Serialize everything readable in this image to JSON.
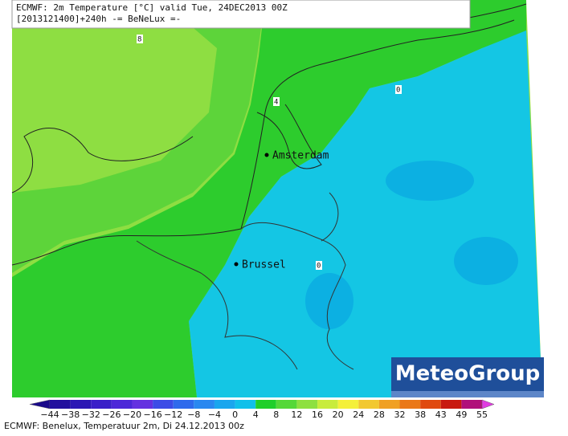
{
  "header": {
    "line1": "ECMWF: 2m Temperature [°C] valid Tue, 24DEC2013 00Z",
    "line2": "[2013121400]+240h -= BeNeLux =-"
  },
  "map": {
    "cities": [
      "Amsterdam",
      "Brussel"
    ],
    "contour_labels": [
      "8",
      "4",
      "0",
      "0"
    ],
    "logo": "MeteoGroup"
  },
  "colorbar": {
    "labels": [
      "−44",
      "−38",
      "−32",
      "−26",
      "−20",
      "−16",
      "−12",
      "−8",
      "−4",
      "0",
      "4",
      "8",
      "12",
      "16",
      "20",
      "24",
      "28",
      "32",
      "38",
      "43",
      "49",
      "55"
    ],
    "colors": [
      "#1a0a8a",
      "#22109e",
      "#2c18b4",
      "#3a20c8",
      "#4c28d8",
      "#6432e0",
      "#3c4ce6",
      "#2f6aec",
      "#2a88f0",
      "#1aa6ee",
      "#10c0ea",
      "#1fcf2a",
      "#55d838",
      "#8ee040",
      "#c8ec3c",
      "#f4f03a",
      "#f2c830",
      "#f0a024",
      "#ea7818",
      "#e04a10",
      "#c81a10",
      "#b0107a",
      "#e03ce0"
    ]
  },
  "footer": "ECMWF: Benelux, Temperatuur 2m, Di 24.12.2013 00z"
}
